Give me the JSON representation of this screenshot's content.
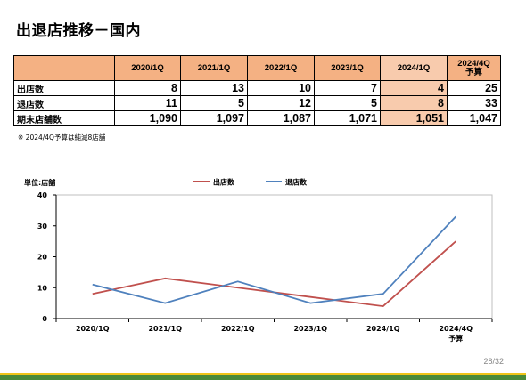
{
  "page": {
    "title": "出退店推移－国内",
    "note": "※ 2024/4Q予算は純減8店舗",
    "page_number": "28/32"
  },
  "table": {
    "columns": [
      "2020/1Q",
      "2021/1Q",
      "2022/1Q",
      "2023/1Q",
      "2024/1Q",
      "2024/4Q\n予算"
    ],
    "rows": [
      {
        "label": "出店数",
        "values": [
          "8",
          "13",
          "10",
          "7",
          "4",
          "25"
        ]
      },
      {
        "label": "退店数",
        "values": [
          "11",
          "5",
          "12",
          "5",
          "8",
          "33"
        ]
      },
      {
        "label": "期末店舗数",
        "values": [
          "1,090",
          "1,097",
          "1,087",
          "1,071",
          "1,051",
          "1,047"
        ]
      }
    ],
    "highlight_color": "#f8cbad",
    "header_color": "#f4b183"
  },
  "chart_data": {
    "type": "line",
    "categories": [
      "2020/1Q",
      "2021/1Q",
      "2022/1Q",
      "2023/1Q",
      "2024/1Q",
      "2024/4Q\n予算"
    ],
    "series": [
      {
        "name": "出店数",
        "values": [
          8,
          13,
          10,
          7,
          4,
          25
        ],
        "color": "#c0504d"
      },
      {
        "name": "退店数",
        "values": [
          11,
          5,
          12,
          5,
          8,
          33
        ],
        "color": "#4f81bd"
      }
    ],
    "ylabel": "単位:店舗",
    "ylim": [
      0,
      40
    ],
    "yticks": [
      0,
      10,
      20,
      30,
      40
    ],
    "grid": false,
    "legend": "top-center"
  }
}
